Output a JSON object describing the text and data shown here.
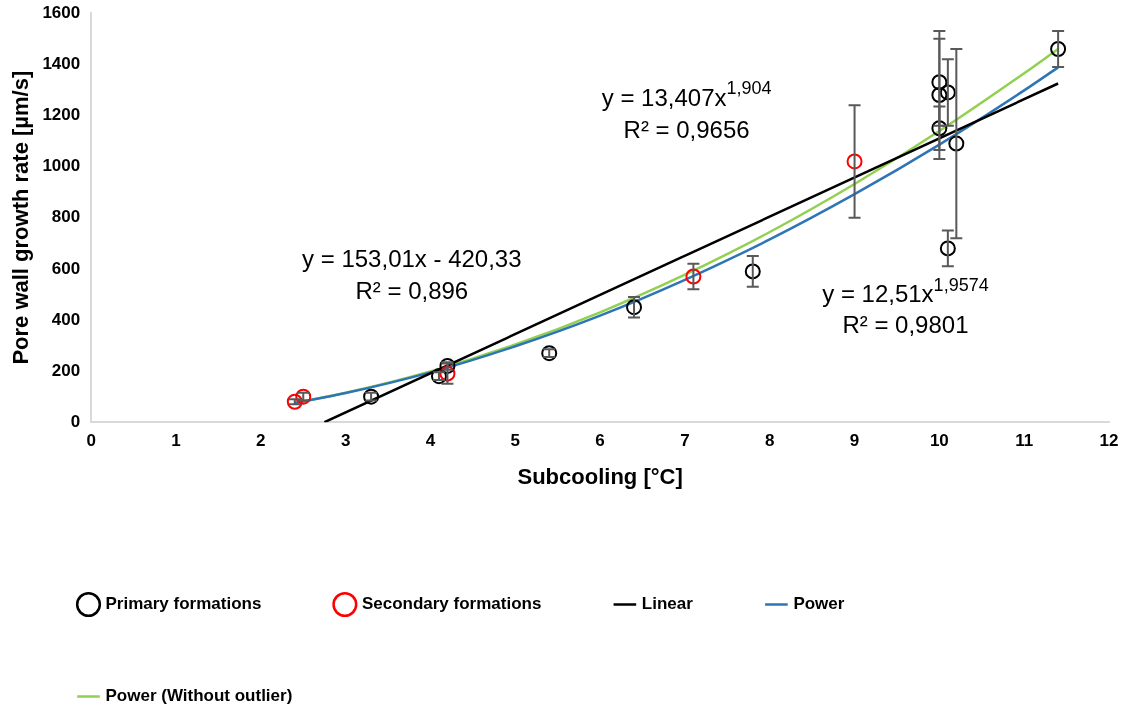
{
  "chart_data": {
    "type": "scatter",
    "xlabel": "Subcooling [°C]",
    "ylabel": "Pore wall growth rate [µm/s]",
    "xlim": [
      0,
      12
    ],
    "xticks": [
      0,
      1,
      2,
      3,
      4,
      5,
      6,
      7,
      8,
      9,
      10,
      11,
      12
    ],
    "ylim": [
      0,
      1600
    ],
    "yticks": [
      0,
      200,
      400,
      600,
      800,
      1000,
      1200,
      1400,
      1600
    ],
    "grid": false,
    "legend": "bottom",
    "series": [
      {
        "name": "Primary formations",
        "marker": "circle",
        "color": "#000000",
        "x": [
          3.3,
          4.1,
          4.2,
          5.4,
          6.4,
          7.8,
          10,
          10,
          10,
          10.1,
          10.1,
          10.2,
          11.4
        ],
        "values": [
          100,
          180,
          220,
          270,
          450,
          590,
          1330,
          1280,
          1150,
          1290,
          680,
          1090,
          1460
        ],
        "errors": [
          15,
          15,
          15,
          15,
          40,
          60,
          170,
          250,
          85,
          130,
          70,
          370,
          70
        ]
      },
      {
        "name": "Secondary formations",
        "marker": "circle",
        "color": "#ff0000",
        "x": [
          2.4,
          2.5,
          4.2,
          7.1,
          9
        ],
        "values": [
          80,
          100,
          190,
          570,
          1020
        ],
        "errors": [
          10,
          15,
          40,
          50,
          220
        ]
      },
      {
        "name": "Linear",
        "type": "line",
        "marker": "none",
        "color": "#000000",
        "x": [
          2.75,
          11.4
        ],
        "values": [
          0,
          1325
        ]
      },
      {
        "name": "Power",
        "type": "line",
        "marker": "none",
        "color": "#2e75b6",
        "x": [
          2.4,
          3,
          4,
          5,
          6,
          7,
          8,
          9,
          10,
          11,
          11.4
        ],
        "values": [
          75,
          114,
          195,
          297,
          417,
          557,
          715,
          892,
          1086,
          1298,
          1388
        ]
      },
      {
        "name": "Power (Without outlier)",
        "type": "line",
        "marker": "none",
        "color": "#92d050",
        "x": [
          2.4,
          3,
          4,
          5,
          6,
          7,
          8,
          9,
          10,
          11,
          11.4
        ],
        "values": [
          75,
          115,
          199,
          304,
          430,
          577,
          744,
          932,
          1139,
          1365,
          1460
        ]
      }
    ],
    "annotations": [
      "y = 13,407x$^{1,904}$",
      "R² = 0,9656",
      "y = 153,01x - 420,33",
      "R² = 0,896",
      "y = 12,51x$^{1,9574}$",
      "R² = 0,9801"
    ]
  }
}
